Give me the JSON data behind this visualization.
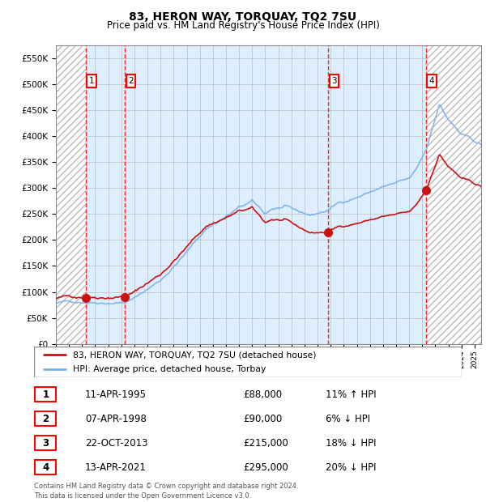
{
  "title": "83, HERON WAY, TORQUAY, TQ2 7SU",
  "subtitle": "Price paid vs. HM Land Registry's House Price Index (HPI)",
  "ylim": [
    0,
    575000
  ],
  "yticks": [
    0,
    50000,
    100000,
    150000,
    200000,
    250000,
    300000,
    350000,
    400000,
    450000,
    500000,
    550000
  ],
  "xlim_start": 1993.0,
  "xlim_end": 2025.5,
  "plot_bg_color": "#ddeeff",
  "grid_color": "#bbbbbb",
  "sale_dates": [
    1995.28,
    1998.27,
    2013.81,
    2021.28
  ],
  "sale_prices": [
    88000,
    90000,
    215000,
    295000
  ],
  "sale_labels": [
    "1",
    "2",
    "3",
    "4"
  ],
  "hpi_line_color": "#7ab0e8",
  "price_line_color": "#cc1111",
  "legend_entries": [
    "83, HERON WAY, TORQUAY, TQ2 7SU (detached house)",
    "HPI: Average price, detached house, Torbay"
  ],
  "table_rows": [
    [
      "1",
      "11-APR-1995",
      "£88,000",
      "11% ↑ HPI"
    ],
    [
      "2",
      "07-APR-1998",
      "£90,000",
      "6% ↓ HPI"
    ],
    [
      "3",
      "22-OCT-2013",
      "£215,000",
      "18% ↓ HPI"
    ],
    [
      "4",
      "13-APR-2021",
      "£295,000",
      "20% ↓ HPI"
    ]
  ],
  "footer": "Contains HM Land Registry data © Crown copyright and database right 2024.\nThis data is licensed under the Open Government Licence v3.0."
}
